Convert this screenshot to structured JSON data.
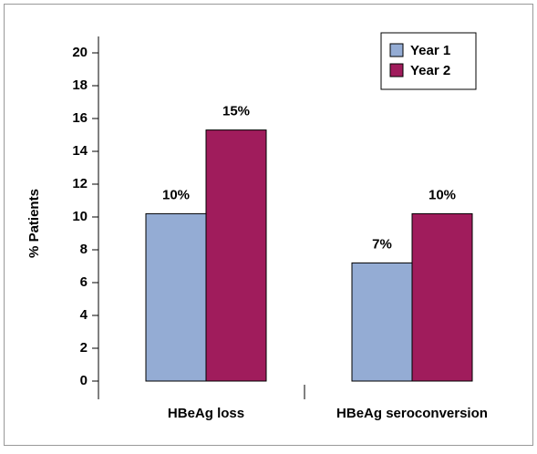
{
  "chart_data": {
    "type": "bar",
    "ylabel": "% Patients",
    "categories": [
      "HBeAg loss",
      "HBeAg seroconversion"
    ],
    "series": [
      {
        "name": "Year 1",
        "color": "#94acd4",
        "values": [
          10.2,
          7.2
        ],
        "value_labels": [
          "10%",
          "7%"
        ]
      },
      {
        "name": "Year 2",
        "color": "#a01c5c",
        "values": [
          15.3,
          10.2
        ],
        "value_labels": [
          "15%",
          "10%"
        ]
      }
    ],
    "ylim": [
      0,
      21
    ],
    "yticks": [
      0,
      2,
      4,
      6,
      8,
      10,
      12,
      14,
      16,
      18,
      20
    ],
    "legend": "upper right"
  }
}
